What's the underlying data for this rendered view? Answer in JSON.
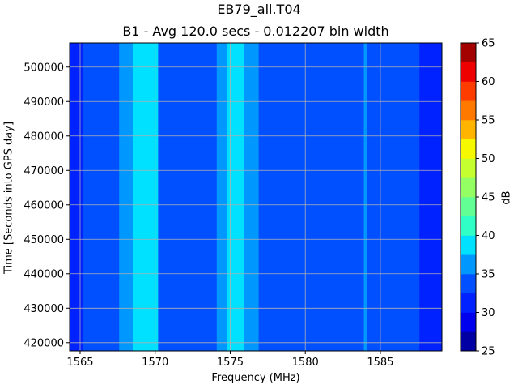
{
  "chart_data": {
    "type": "heatmap",
    "title": "EB79_all.T04",
    "subtitle": "B1 - Avg 120.0 secs - 0.012207 bin width",
    "xlabel": "Frequency (MHz)",
    "ylabel": "Time [Seconds into GPS day]",
    "xlim": [
      1564.3,
      1589.1
    ],
    "ylim": [
      417600,
      507000
    ],
    "x_ticks": [
      1565,
      1570,
      1575,
      1580,
      1585
    ],
    "y_ticks": [
      420000,
      430000,
      440000,
      450000,
      460000,
      470000,
      480000,
      490000,
      500000
    ],
    "x_tick_labels": [
      "1565",
      "1570",
      "1575",
      "1580",
      "1585"
    ],
    "y_tick_labels": [
      "420000",
      "430000",
      "440000",
      "450000",
      "460000",
      "470000",
      "480000",
      "490000",
      "500000"
    ],
    "grid": true,
    "colorbar": {
      "label": "dB",
      "min": 25,
      "max": 65,
      "levels": [
        25,
        27.5,
        30,
        32.5,
        35,
        37.5,
        40,
        42.5,
        45,
        47.5,
        50,
        52.5,
        55,
        57.5,
        60,
        62.5,
        65
      ],
      "tick_values": [
        25,
        30,
        35,
        40,
        45,
        50,
        55,
        60,
        65
      ],
      "tick_labels": [
        "25",
        "30",
        "35",
        "40",
        "45",
        "50",
        "55",
        "60",
        "65"
      ],
      "colors": [
        "#0000a3",
        "#0000ee",
        "#0022ff",
        "#0050ff",
        "#0098ff",
        "#00e0ff",
        "#30ffc6",
        "#62ff94",
        "#94ff62",
        "#c6ff30",
        "#f6f800",
        "#ffb400",
        "#ff7800",
        "#ff3c00",
        "#ee0000",
        "#a30000"
      ]
    },
    "background_level_db": 33.5,
    "bands": [
      {
        "x": [
          1564.3,
          1565.2
        ],
        "level_db": 30.5
      },
      {
        "x": [
          1565.2,
          1567.6
        ],
        "level_db": 33.5
      },
      {
        "x": [
          1567.6,
          1568.5
        ],
        "level_db": 36
      },
      {
        "x": [
          1568.5,
          1570.2
        ],
        "level_db": 37.5
      },
      {
        "x": [
          1570.2,
          1574.1
        ],
        "level_db": 33.5
      },
      {
        "x": [
          1574.1,
          1574.8
        ],
        "level_db": 36.5
      },
      {
        "x": [
          1574.8,
          1575.9
        ],
        "level_db": 38.5
      },
      {
        "x": [
          1575.9,
          1576.9
        ],
        "level_db": 36.5
      },
      {
        "x": [
          1576.9,
          1583.9
        ],
        "level_db": 33.5
      },
      {
        "x": [
          1583.9,
          1584.1
        ],
        "level_db": 36
      },
      {
        "x": [
          1584.1,
          1587.6
        ],
        "level_db": 33.5
      },
      {
        "x": [
          1587.6,
          1589.1
        ],
        "level_db": 31
      }
    ]
  }
}
